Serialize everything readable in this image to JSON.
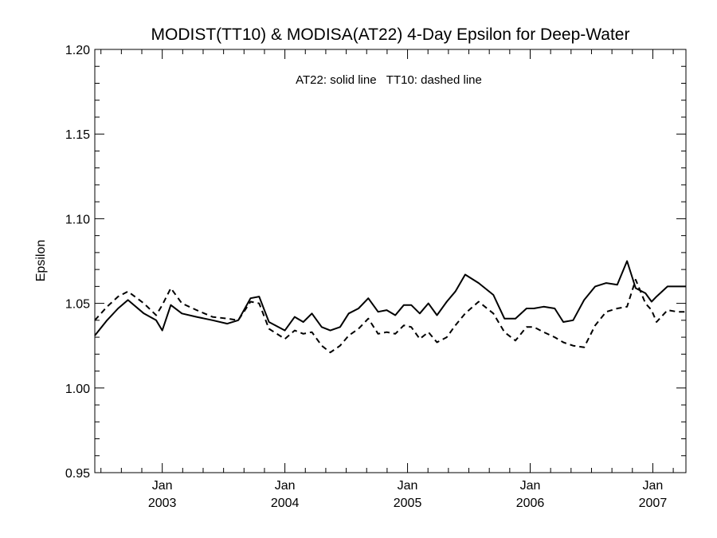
{
  "chart_data": {
    "type": "line",
    "title": "MODIST(TT10) & MODISA(AT22) 4-Day Epsilon for Deep-Water",
    "annotation": "AT22: solid line   TT10: dashed line",
    "xlabel": "",
    "ylabel": "Epsilon",
    "ylim": [
      0.95,
      1.2
    ],
    "yticks": [
      "0.95",
      "1.00",
      "1.05",
      "1.10",
      "1.15",
      "1.20"
    ],
    "xlim": [
      2002.45,
      2007.27
    ],
    "xticks": [
      {
        "month": "Jan",
        "year": "2003",
        "x": 2003.0
      },
      {
        "month": "Jan",
        "year": "2004",
        "x": 2004.0
      },
      {
        "month": "Jan",
        "year": "2005",
        "x": 2005.0
      },
      {
        "month": "Jan",
        "year": "2006",
        "x": 2006.0
      },
      {
        "month": "Jan",
        "year": "2007",
        "x": 2007.0
      }
    ],
    "grid": false,
    "series": [
      {
        "name": "AT22",
        "style": "solid",
        "color": "#000000",
        "x": [
          2002.45,
          2002.55,
          2002.64,
          2002.72,
          2002.85,
          2002.95,
          2003.0,
          2003.07,
          2003.16,
          2003.28,
          2003.41,
          2003.53,
          2003.62,
          2003.72,
          2003.79,
          2003.87,
          2004.0,
          2004.08,
          2004.15,
          2004.22,
          2004.3,
          2004.37,
          2004.45,
          2004.52,
          2004.6,
          2004.68,
          2004.76,
          2004.83,
          2004.9,
          2004.97,
          2005.03,
          2005.1,
          2005.17,
          2005.24,
          2005.32,
          2005.39,
          2005.47,
          2005.58,
          2005.7,
          2005.79,
          2005.88,
          2005.97,
          2006.03,
          2006.11,
          2006.2,
          2006.27,
          2006.35,
          2006.44,
          2006.53,
          2006.62,
          2006.71,
          2006.79,
          2006.86,
          2006.94,
          2006.99,
          2007.03,
          2007.12,
          2007.2,
          2007.27
        ],
        "y": [
          1.031,
          1.04,
          1.047,
          1.052,
          1.044,
          1.04,
          1.034,
          1.049,
          1.044,
          1.042,
          1.04,
          1.038,
          1.04,
          1.053,
          1.054,
          1.039,
          1.034,
          1.042,
          1.039,
          1.044,
          1.036,
          1.034,
          1.036,
          1.044,
          1.047,
          1.053,
          1.045,
          1.046,
          1.043,
          1.049,
          1.049,
          1.044,
          1.05,
          1.043,
          1.051,
          1.057,
          1.067,
          1.062,
          1.055,
          1.041,
          1.041,
          1.047,
          1.047,
          1.048,
          1.047,
          1.039,
          1.04,
          1.052,
          1.06,
          1.062,
          1.061,
          1.075,
          1.059,
          1.056,
          1.051,
          1.054,
          1.06,
          1.06,
          1.06
        ]
      },
      {
        "name": "TT10",
        "style": "dashed",
        "color": "#000000",
        "x": [
          2002.45,
          2002.55,
          2002.64,
          2002.72,
          2002.85,
          2002.95,
          2003.0,
          2003.07,
          2003.16,
          2003.28,
          2003.41,
          2003.53,
          2003.62,
          2003.72,
          2003.79,
          2003.87,
          2004.0,
          2004.08,
          2004.15,
          2004.22,
          2004.3,
          2004.37,
          2004.45,
          2004.52,
          2004.6,
          2004.68,
          2004.76,
          2004.83,
          2004.9,
          2004.97,
          2005.03,
          2005.1,
          2005.17,
          2005.24,
          2005.32,
          2005.39,
          2005.47,
          2005.58,
          2005.7,
          2005.79,
          2005.88,
          2005.97,
          2006.03,
          2006.11,
          2006.2,
          2006.27,
          2006.35,
          2006.44,
          2006.53,
          2006.62,
          2006.71,
          2006.79,
          2006.86,
          2006.94,
          2006.99,
          2007.03,
          2007.12,
          2007.2,
          2007.27
        ],
        "y": [
          1.04,
          1.048,
          1.054,
          1.057,
          1.05,
          1.043,
          1.049,
          1.059,
          1.05,
          1.046,
          1.042,
          1.041,
          1.04,
          1.051,
          1.05,
          1.035,
          1.029,
          1.034,
          1.032,
          1.033,
          1.025,
          1.021,
          1.025,
          1.031,
          1.035,
          1.041,
          1.032,
          1.033,
          1.032,
          1.037,
          1.036,
          1.029,
          1.033,
          1.027,
          1.03,
          1.037,
          1.044,
          1.051,
          1.044,
          1.033,
          1.028,
          1.036,
          1.036,
          1.033,
          1.03,
          1.027,
          1.025,
          1.024,
          1.037,
          1.045,
          1.047,
          1.048,
          1.064,
          1.05,
          1.046,
          1.039,
          1.046,
          1.045,
          1.045
        ]
      }
    ]
  }
}
